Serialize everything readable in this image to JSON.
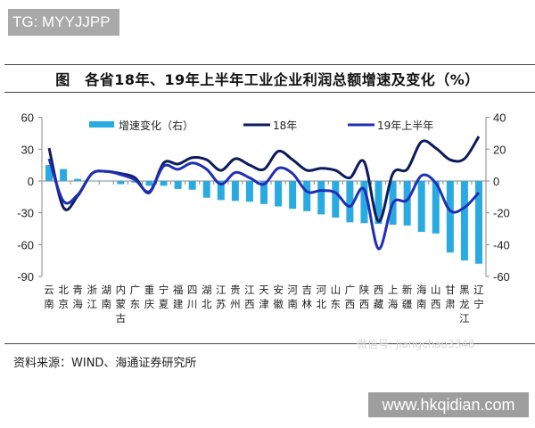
{
  "watermark_top": "TG: MYYJJPP",
  "watermark_wechat": "微信号: jiangchao3348",
  "watermark_site": "www.hkqidian.com",
  "source": "资料来源：WIND、海通证券研究所",
  "chart_data": {
    "type": "bar+line",
    "title": "图　各省18年、19年上半年工业企业利润总额增速及变化（%）",
    "categories": [
      "云南",
      "北京",
      "青海",
      "浙江",
      "湖南",
      "内蒙古",
      "广东",
      "重庆",
      "宁夏",
      "福建",
      "四川",
      "湖北",
      "江苏",
      "贵州",
      "江西",
      "天津",
      "安徽",
      "河南",
      "吉林",
      "河北",
      "山东",
      "广西",
      "陕西",
      "西藏",
      "上海",
      "新疆",
      "海南",
      "山西",
      "甘肃",
      "黑龙江",
      "辽宁"
    ],
    "left_axis": {
      "ylim": [
        -90,
        60
      ],
      "ticks": [
        "60",
        "30",
        "0",
        "-30",
        "-60",
        "-90"
      ]
    },
    "right_axis": {
      "ylim": [
        -60,
        40
      ],
      "ticks": [
        "40",
        "20",
        "0",
        "-20",
        "-40",
        "-60"
      ]
    },
    "legend_placement": "top",
    "series": [
      {
        "name": "增速变化（右）",
        "type": "bar",
        "axis": "right",
        "color": "#29abe2",
        "values": [
          10,
          7.5,
          1.3,
          0,
          0,
          -2,
          -1,
          -3,
          -3,
          -5,
          -5.5,
          -10.5,
          -12,
          -12.5,
          -13,
          -14.5,
          -16,
          -17.5,
          -19,
          -21,
          -23,
          -26,
          -26.5,
          -27,
          -27.5,
          -28,
          -32,
          -33,
          -45,
          -50,
          -52
        ]
      },
      {
        "name": "18年",
        "type": "line",
        "axis": "left",
        "color": "#0d1a5c",
        "values": [
          31,
          -25,
          -14,
          7,
          9,
          7,
          3,
          -11,
          17,
          16,
          22,
          20,
          10,
          21,
          15,
          11,
          28,
          20,
          10,
          12,
          10,
          3,
          18,
          -38,
          7,
          11,
          37,
          31,
          20,
          21,
          42
        ]
      },
      {
        "name": "19年上半年",
        "type": "line",
        "axis": "left",
        "color": "#1f2fb5",
        "values": [
          21,
          -19,
          -13,
          7,
          9,
          6,
          1,
          -10,
          14,
          11,
          17,
          11,
          -3,
          8,
          3,
          -3,
          12,
          7,
          -10,
          -9,
          -11,
          -24,
          -8,
          -64,
          -21,
          -18,
          5,
          -2,
          -28,
          -25,
          -11
        ]
      }
    ]
  }
}
